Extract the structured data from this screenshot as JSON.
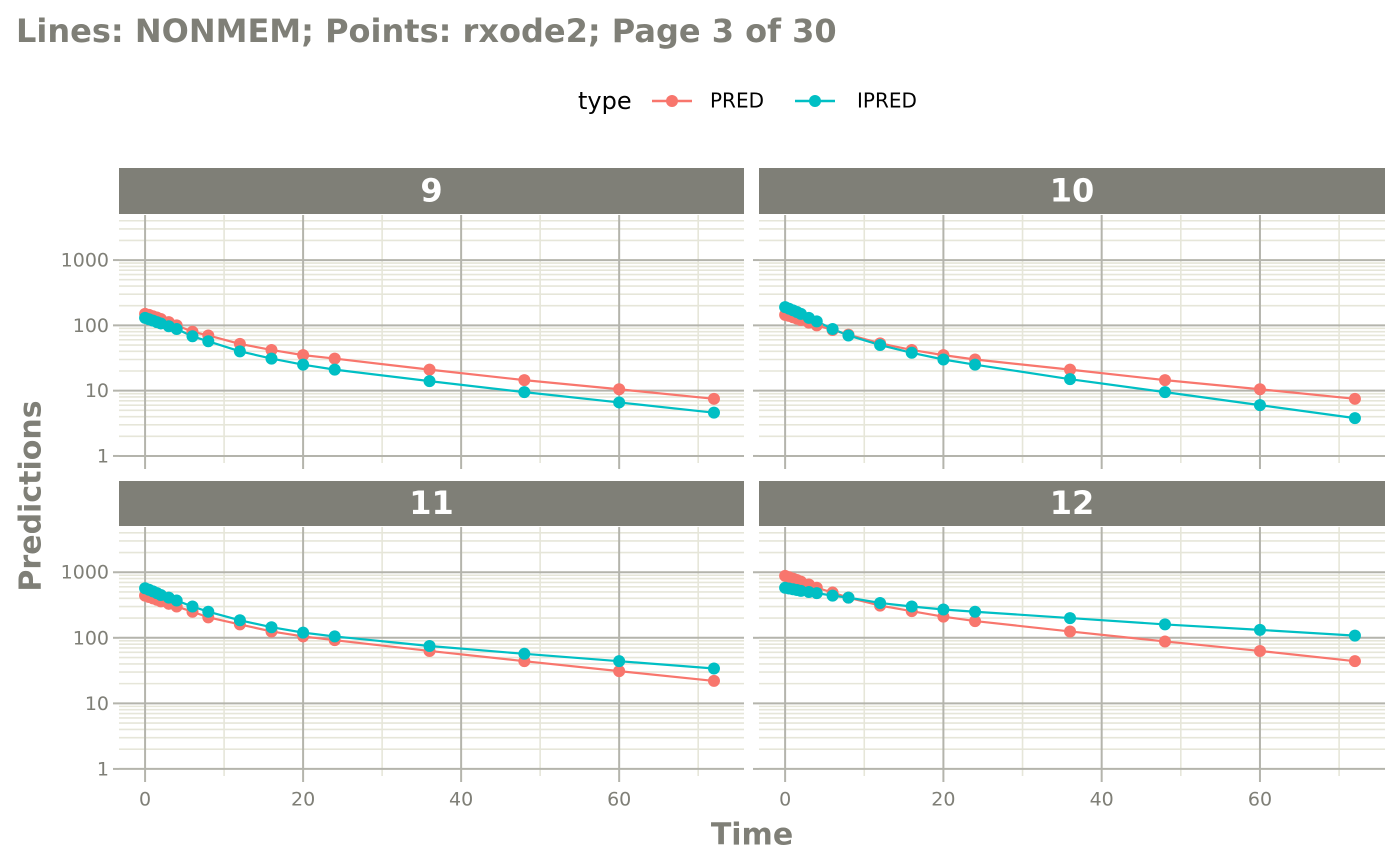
{
  "chart_data": {
    "type": "line",
    "title": "Lines: NONMEM; Points: rxode2; Page 3 of 30",
    "x_label": "Time",
    "y_label": "Predictions",
    "legend_title": "type",
    "log_y": true,
    "grid": true,
    "legend_position": "top",
    "xlim": [
      -3.3,
      75.8
    ],
    "ylim": [
      0.78,
      4900
    ],
    "xticks": [
      0,
      20,
      40,
      60
    ],
    "yticks": [
      1,
      10,
      100,
      1000
    ],
    "xminor": [
      10,
      30,
      50,
      70
    ],
    "yminor": [
      2,
      3,
      4,
      5,
      6,
      7,
      8,
      9,
      20,
      30,
      40,
      50,
      60,
      70,
      80,
      90,
      200,
      300,
      400,
      500,
      600,
      700,
      800,
      900,
      2000,
      3000,
      4000
    ],
    "x": [
      0,
      0.5,
      1,
      1.5,
      2,
      3,
      4,
      6,
      8,
      12,
      16,
      20,
      24,
      36,
      48,
      60,
      72
    ],
    "facets": [
      {
        "title": "9",
        "series": [
          {
            "name": "PRED",
            "color": "#F8766D",
            "values": [
              150,
              145,
              138,
              132,
              125,
              112,
              100,
              80,
              70,
              52,
              42,
              35,
              31,
              21,
              14.5,
              10.5,
              7.5
            ]
          },
          {
            "name": "IPRED",
            "color": "#00BFC4",
            "values": [
              130,
              124,
              118,
              112,
              107,
              97,
              88,
              68,
              57,
              40,
              31,
              25,
              21,
              14,
              9.5,
              6.6,
              4.6
            ]
          }
        ]
      },
      {
        "title": "10",
        "series": [
          {
            "name": "PRED",
            "color": "#F8766D",
            "values": [
              145,
              140,
              133,
              127,
              121,
              110,
              100,
              85,
              72,
              53,
              42,
              35,
              30,
              21,
              14.5,
              10.5,
              7.5
            ]
          },
          {
            "name": "IPRED",
            "color": "#00BFC4",
            "values": [
              190,
              180,
              170,
              160,
              150,
              130,
              115,
              88,
              70,
              50,
              38,
              30,
              25,
              15,
              9.5,
              6,
              3.8
            ]
          }
        ]
      },
      {
        "title": "11",
        "series": [
          {
            "name": "PRED",
            "color": "#F8766D",
            "values": [
              440,
              420,
              400,
              380,
              360,
              330,
              300,
              250,
              205,
              160,
              125,
              105,
              92,
              63,
              44,
              31,
              22
            ]
          },
          {
            "name": "IPRED",
            "color": "#00BFC4",
            "values": [
              570,
              540,
              510,
              480,
              450,
              410,
              370,
              300,
              250,
              185,
              145,
              120,
              105,
              75,
              57,
              44,
              34
            ]
          }
        ]
      },
      {
        "title": "12",
        "series": [
          {
            "name": "PRED",
            "color": "#F8766D",
            "values": [
              880,
              840,
              800,
              760,
              720,
              650,
              580,
              490,
              410,
              310,
              255,
              210,
              180,
              125,
              88,
              63,
              44
            ]
          },
          {
            "name": "IPRED",
            "color": "#00BFC4",
            "values": [
              580,
              565,
              550,
              535,
              520,
              500,
              480,
              440,
              410,
              340,
              300,
              270,
              250,
              200,
              160,
              132,
              108
            ]
          }
        ]
      }
    ]
  }
}
